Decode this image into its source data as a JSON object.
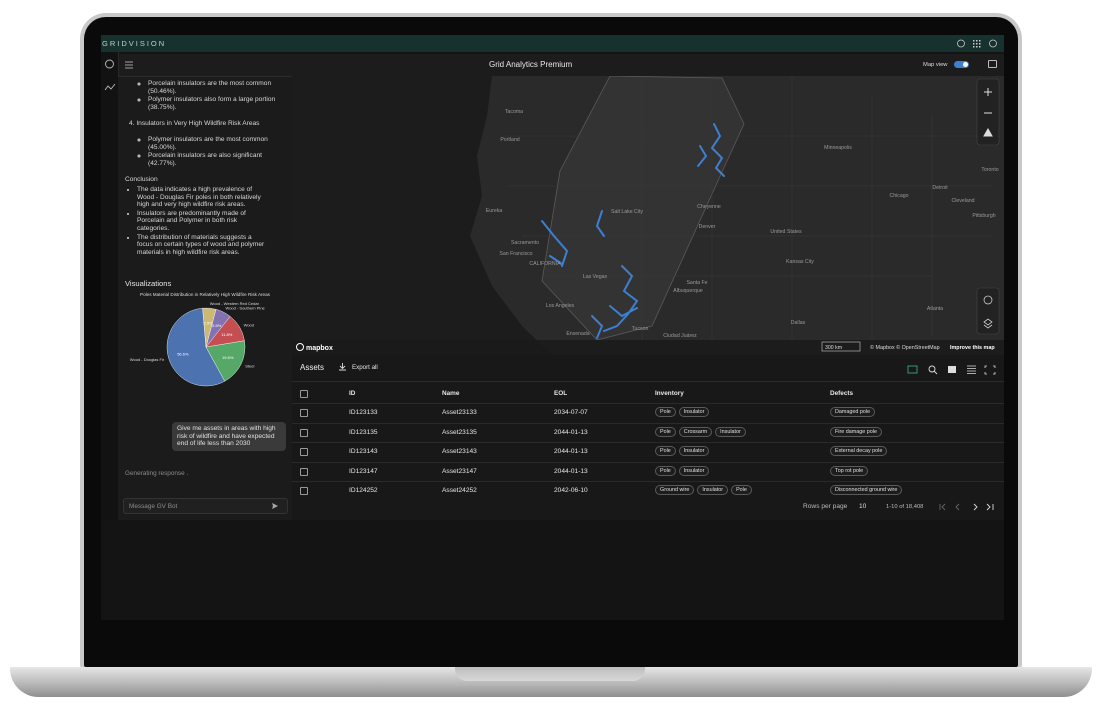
{
  "header": {
    "brand": "GRIDVISION",
    "title": "Grid Analytics Premium",
    "map_toggle": "Map view"
  },
  "chat": {
    "intro_items": [
      "Porcelain insulators are the most common (50.46%).",
      "Polymer insulators also form a large portion (38.75%)."
    ],
    "section_heading": "4. Insulators in Very High Wildfire Risk Areas",
    "section_items": [
      "Polymer insulators are the most common (45.00%).",
      "Porcelain insulators are also significant (42.77%)."
    ],
    "conclusion_heading": "Conclusion",
    "conclusion_items": [
      "The data indicates a high prevalence of Wood - Douglas Fir poles in both relatively high and very high wildfire risk areas.",
      "Insulators are predominantly made of Porcelain and Polymer in both risk categories.",
      "The distribution of materials suggests a focus on certain types of wood and polymer materials in high wildfire risk areas."
    ],
    "visualizations_heading": "Visualizations",
    "user_message": "Give me assets in areas with high risk of wildfire and have expected end of life less than 2030",
    "status": "Generating response .",
    "input_placeholder": "Message GV Bot"
  },
  "chart_data": {
    "type": "pie",
    "title": "Poles Material Distribution in Relatively High Wildfire Risk Areas",
    "categories": [
      "Wood - Douglas Fir",
      "Steel",
      "Wood",
      "Wood - Southern Pine",
      "Wood - Western Red Cedar"
    ],
    "values": [
      56.6,
      19.6,
      11.8,
      6.5,
      5.5
    ],
    "value_labels": [
      "56.6%",
      "19.6%",
      "11.8%",
      "6.5%",
      "5.5%"
    ],
    "colors": [
      "#4c72b0",
      "#55a868",
      "#c44e52",
      "#8172b2",
      "#ccb974"
    ]
  },
  "map": {
    "labels": [
      "Tacoma",
      "Portland",
      "Eureka",
      "Sacramento",
      "San Francisco",
      "CALIFORNIA",
      "Salt Lake City",
      "Las Vegas",
      "Los Angeles",
      "Ensenada",
      "Tucson",
      "Santa Fe",
      "Albuquerque",
      "Denver",
      "Cheyenne",
      "United States",
      "Minneapolis",
      "Chicago",
      "Detroit",
      "Toronto",
      "Cleveland",
      "Pittsburgh",
      "Kansas City",
      "Dallas",
      "Atlanta",
      "Ciudad Juárez"
    ],
    "logo": "mapbox",
    "scale": "300 km",
    "attribution": "© Mapbox © OpenStreetMap",
    "improve_link": "Improve this map"
  },
  "table": {
    "title": "Assets",
    "export": "Export all",
    "columns": [
      "ID",
      "Name",
      "EOL",
      "Inventory",
      "Defects"
    ],
    "rows": [
      {
        "id": "ID123133",
        "name": "Asset23133",
        "eol": "2034-07-07",
        "inventory": [
          "Pole",
          "Insulator"
        ],
        "defects": "Damaged pole"
      },
      {
        "id": "ID123135",
        "name": "Asset23135",
        "eol": "2044-01-13",
        "inventory": [
          "Pole",
          "Crossarm",
          "Insulator"
        ],
        "defects": "Fire damage pole"
      },
      {
        "id": "ID123143",
        "name": "Asset23143",
        "eol": "2044-01-13",
        "inventory": [
          "Pole",
          "Insulator"
        ],
        "defects": "External decay pole"
      },
      {
        "id": "ID123147",
        "name": "Asset23147",
        "eol": "2044-01-13",
        "inventory": [
          "Pole",
          "Insulator"
        ],
        "defects": "Top rot pole"
      },
      {
        "id": "ID124252",
        "name": "Asset24252",
        "eol": "2042-06-10",
        "inventory": [
          "Ground wire",
          "Insulator",
          "Pole"
        ],
        "defects": "Disconnected ground wire"
      }
    ],
    "rows_per_page_label": "Rows per page",
    "rows_per_page": 10,
    "range": "1-10 of 18,408"
  }
}
